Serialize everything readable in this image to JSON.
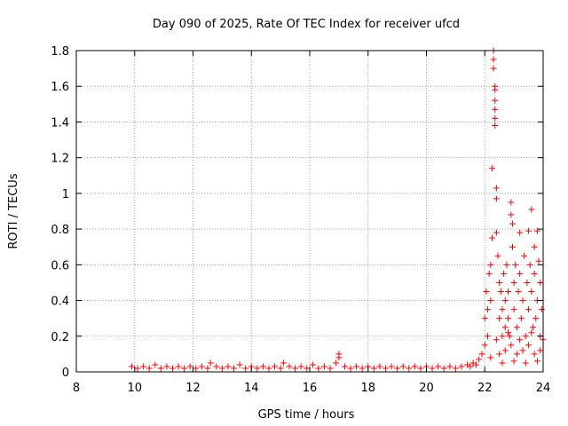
{
  "chart_data": {
    "type": "scatter",
    "title": "Day 090 of 2025, Rate Of TEC Index for receiver ufcd",
    "xlabel": "GPS time / hours",
    "ylabel": "ROTI / TECUs",
    "xlim": [
      8,
      24
    ],
    "ylim": [
      0,
      1.8
    ],
    "xticks": [
      "8",
      "10",
      "12",
      "14",
      "16",
      "18",
      "20",
      "22",
      "24"
    ],
    "yticks": [
      "0",
      "0.2",
      "0.4",
      "0.6",
      "0.8",
      "1",
      "1.2",
      "1.4",
      "1.6",
      "1.8"
    ],
    "grid": true,
    "marker": "plus",
    "color": "#ff0000",
    "series": [
      {
        "points": [
          [
            9.9,
            0.03
          ],
          [
            10.1,
            0.02
          ],
          [
            10.3,
            0.03
          ],
          [
            10.5,
            0.02
          ],
          [
            10.7,
            0.04
          ],
          [
            10.9,
            0.02
          ],
          [
            11.1,
            0.03
          ],
          [
            11.3,
            0.02
          ],
          [
            11.5,
            0.03
          ],
          [
            11.7,
            0.02
          ],
          [
            11.9,
            0.03
          ],
          [
            12.1,
            0.02
          ],
          [
            12.3,
            0.03
          ],
          [
            12.5,
            0.02
          ],
          [
            12.6,
            0.05
          ],
          [
            12.8,
            0.03
          ],
          [
            13.0,
            0.02
          ],
          [
            13.2,
            0.03
          ],
          [
            13.4,
            0.02
          ],
          [
            13.6,
            0.04
          ],
          [
            13.8,
            0.02
          ],
          [
            14.0,
            0.03
          ],
          [
            14.2,
            0.02
          ],
          [
            14.4,
            0.03
          ],
          [
            14.6,
            0.02
          ],
          [
            14.8,
            0.03
          ],
          [
            15.0,
            0.02
          ],
          [
            15.1,
            0.05
          ],
          [
            15.3,
            0.03
          ],
          [
            15.5,
            0.02
          ],
          [
            15.7,
            0.03
          ],
          [
            15.9,
            0.02
          ],
          [
            16.1,
            0.04
          ],
          [
            16.3,
            0.02
          ],
          [
            16.5,
            0.03
          ],
          [
            16.7,
            0.02
          ],
          [
            16.9,
            0.05
          ],
          [
            17.0,
            0.1
          ],
          [
            17.0,
            0.08
          ],
          [
            17.2,
            0.03
          ],
          [
            17.4,
            0.02
          ],
          [
            17.6,
            0.03
          ],
          [
            17.8,
            0.02
          ],
          [
            18.0,
            0.03
          ],
          [
            18.2,
            0.02
          ],
          [
            18.4,
            0.03
          ],
          [
            18.6,
            0.02
          ],
          [
            18.8,
            0.03
          ],
          [
            19.0,
            0.02
          ],
          [
            19.2,
            0.03
          ],
          [
            19.4,
            0.02
          ],
          [
            19.6,
            0.03
          ],
          [
            19.8,
            0.02
          ],
          [
            20.0,
            0.03
          ],
          [
            20.2,
            0.02
          ],
          [
            20.4,
            0.03
          ],
          [
            20.6,
            0.02
          ],
          [
            20.8,
            0.03
          ],
          [
            21.0,
            0.02
          ],
          [
            21.2,
            0.03
          ],
          [
            21.4,
            0.04
          ],
          [
            21.6,
            0.05
          ],
          [
            21.8,
            0.07
          ],
          [
            21.9,
            0.1
          ],
          [
            22.0,
            0.15
          ],
          [
            22.0,
            0.3
          ],
          [
            22.05,
            0.45
          ],
          [
            22.1,
            0.2
          ],
          [
            22.1,
            0.35
          ],
          [
            22.15,
            0.55
          ],
          [
            22.2,
            0.4
          ],
          [
            22.2,
            0.6
          ],
          [
            22.25,
            0.75
          ],
          [
            22.25,
            1.14
          ],
          [
            22.3,
            1.8
          ],
          [
            22.3,
            1.75
          ],
          [
            22.3,
            1.7
          ],
          [
            22.35,
            1.6
          ],
          [
            22.35,
            1.58
          ],
          [
            22.35,
            1.52
          ],
          [
            22.35,
            1.47
          ],
          [
            22.35,
            1.42
          ],
          [
            22.35,
            1.38
          ],
          [
            22.4,
            1.03
          ],
          [
            22.4,
            0.97
          ],
          [
            22.4,
            0.78
          ],
          [
            22.45,
            0.65
          ],
          [
            22.5,
            0.5
          ],
          [
            22.5,
            0.3
          ],
          [
            22.55,
            0.45
          ],
          [
            22.6,
            0.35
          ],
          [
            22.6,
            0.2
          ],
          [
            22.65,
            0.55
          ],
          [
            22.7,
            0.4
          ],
          [
            22.7,
            0.25
          ],
          [
            22.75,
            0.6
          ],
          [
            22.8,
            0.3
          ],
          [
            22.8,
            0.45
          ],
          [
            22.85,
            0.2
          ],
          [
            22.9,
            0.95
          ],
          [
            22.9,
            0.88
          ],
          [
            22.95,
            0.83
          ],
          [
            22.95,
            0.7
          ],
          [
            23.0,
            0.5
          ],
          [
            23.0,
            0.35
          ],
          [
            23.05,
            0.6
          ],
          [
            23.1,
            0.25
          ],
          [
            23.15,
            0.45
          ],
          [
            23.2,
            0.78
          ],
          [
            23.2,
            0.55
          ],
          [
            23.25,
            0.3
          ],
          [
            23.3,
            0.4
          ],
          [
            23.35,
            0.65
          ],
          [
            23.4,
            0.2
          ],
          [
            23.45,
            0.5
          ],
          [
            23.5,
            0.79
          ],
          [
            23.5,
            0.35
          ],
          [
            23.55,
            0.6
          ],
          [
            23.6,
            0.91
          ],
          [
            23.6,
            0.45
          ],
          [
            23.65,
            0.25
          ],
          [
            23.7,
            0.7
          ],
          [
            23.7,
            0.55
          ],
          [
            23.75,
            0.3
          ],
          [
            23.8,
            0.79
          ],
          [
            23.8,
            0.4
          ],
          [
            23.85,
            0.62
          ],
          [
            23.9,
            0.5
          ],
          [
            23.9,
            0.2
          ],
          [
            23.95,
            0.35
          ],
          [
            22.5,
            0.1
          ],
          [
            22.7,
            0.12
          ],
          [
            22.9,
            0.15
          ],
          [
            23.1,
            0.1
          ],
          [
            23.3,
            0.12
          ],
          [
            23.5,
            0.15
          ],
          [
            23.7,
            0.1
          ],
          [
            23.9,
            0.12
          ],
          [
            22.6,
            0.05
          ],
          [
            23.0,
            0.06
          ],
          [
            23.4,
            0.05
          ],
          [
            23.8,
            0.06
          ],
          [
            21.7,
            0.04
          ],
          [
            21.5,
            0.03
          ],
          [
            22.2,
            0.08
          ],
          [
            22.4,
            0.18
          ],
          [
            22.8,
            0.22
          ],
          [
            23.2,
            0.18
          ],
          [
            23.6,
            0.22
          ],
          [
            24.0,
            0.18
          ]
        ]
      }
    ]
  }
}
